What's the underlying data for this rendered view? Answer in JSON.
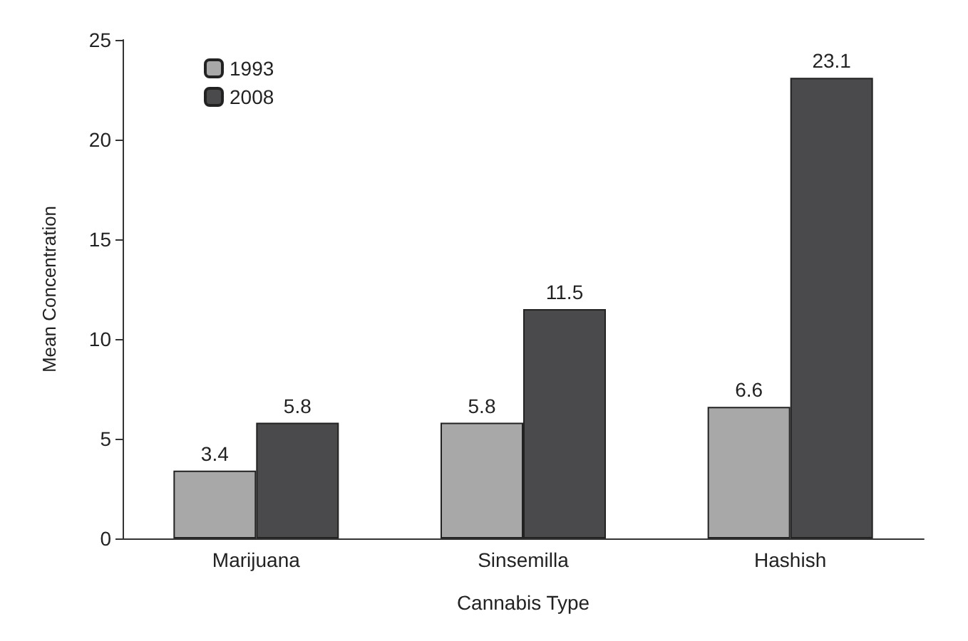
{
  "chart_data": {
    "type": "bar",
    "xlabel": "Cannabis Type",
    "ylabel": "Mean Concentration",
    "categories": [
      "Marijuana",
      "Sinsemilla",
      "Hashish"
    ],
    "series": [
      {
        "name": "1993",
        "color": "#a8a8a8",
        "values": [
          3.4,
          5.8,
          6.6
        ]
      },
      {
        "name": "2008",
        "color": "#4a4a4c",
        "values": [
          5.8,
          11.5,
          23.1
        ]
      }
    ],
    "ylim": [
      0,
      25
    ],
    "yticks": [
      0,
      5,
      10,
      15,
      20,
      25
    ],
    "grid": false,
    "legend": "top left",
    "data_labels": true
  }
}
